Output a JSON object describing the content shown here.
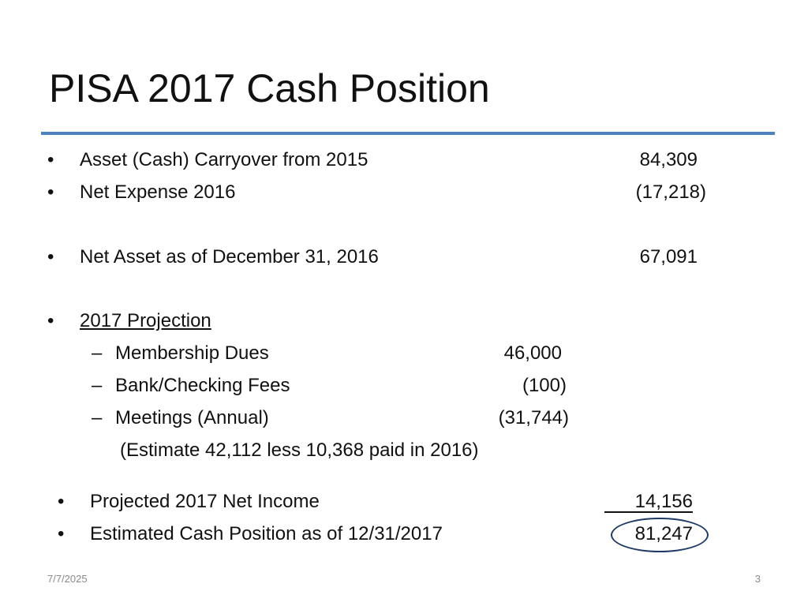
{
  "slide": {
    "title": "PISA 2017 Cash Position",
    "bullet_char": "•",
    "dash_char": "–",
    "rows": {
      "carryover": {
        "label": "Asset (Cash) Carryover from 2015",
        "value": "84,309"
      },
      "net_expense": {
        "label": "Net Expense 2016",
        "value": "(17,218)"
      },
      "net_asset": {
        "label": "Net Asset as of December 31, 2016",
        "value": "67,091"
      },
      "projection_heading": "2017 Projection",
      "sub": {
        "dues": {
          "label": "Membership Dues",
          "value": "46,000"
        },
        "fees": {
          "label": "Bank/Checking Fees",
          "value": "(100)"
        },
        "meetings": {
          "label": "Meetings (Annual)",
          "value": "(31,744)"
        },
        "note": "(Estimate 42,112 less 10,368 paid in 2016)"
      },
      "net_income": {
        "label": "Projected 2017 Net Income",
        "value": "14,156"
      },
      "cash_position": {
        "label": "Estimated Cash Position as of 12/31/2017",
        "value": "81,247"
      }
    },
    "footer": {
      "date": "7/7/2025",
      "page_number": "3"
    }
  }
}
